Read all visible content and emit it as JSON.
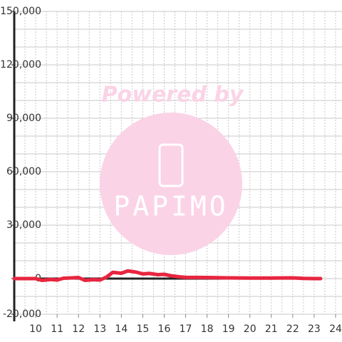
{
  "chart_data": {
    "type": "line",
    "x": [
      9,
      9.5,
      10,
      10.3,
      10.7,
      11,
      11.3,
      11.7,
      12,
      12.3,
      12.7,
      13,
      13.3,
      13.6,
      14,
      14.3,
      14.7,
      15,
      15.3,
      15.7,
      16,
      16.3,
      16.7,
      17,
      18,
      19,
      20,
      21,
      22,
      22.5,
      23,
      23.3
    ],
    "series": [
      {
        "color": "#e8253f",
        "values": [
          0,
          0,
          0,
          -1000,
          -500,
          -800,
          200,
          400,
          600,
          -1000,
          -600,
          -800,
          800,
          3500,
          3000,
          4300,
          3600,
          2600,
          2900,
          2200,
          2400,
          1600,
          1000,
          700,
          600,
          400,
          300,
          300,
          400,
          100,
          0,
          0
        ]
      }
    ],
    "xlim": [
      9,
      24.3
    ],
    "xticks": [
      10,
      11,
      12,
      13,
      14,
      15,
      16,
      17,
      18,
      19,
      20,
      21,
      22,
      23,
      24
    ],
    "ylim": [
      -20000,
      150000
    ],
    "yticks": [
      {
        "value": -20000,
        "label": "-20,000"
      },
      {
        "value": 0,
        "label": "0"
      },
      {
        "value": 30000,
        "label": "30,000"
      },
      {
        "value": 60000,
        "label": "60,000"
      },
      {
        "value": 90000,
        "label": "90,000"
      },
      {
        "value": 120000,
        "label": "120,000"
      },
      {
        "value": 150000,
        "label": "150,000"
      }
    ],
    "y_grid_step": 10000,
    "x_grid_step": 0.5,
    "grid": true,
    "watermark": {
      "text": "Powered by",
      "logo": "PAPIMO"
    }
  }
}
